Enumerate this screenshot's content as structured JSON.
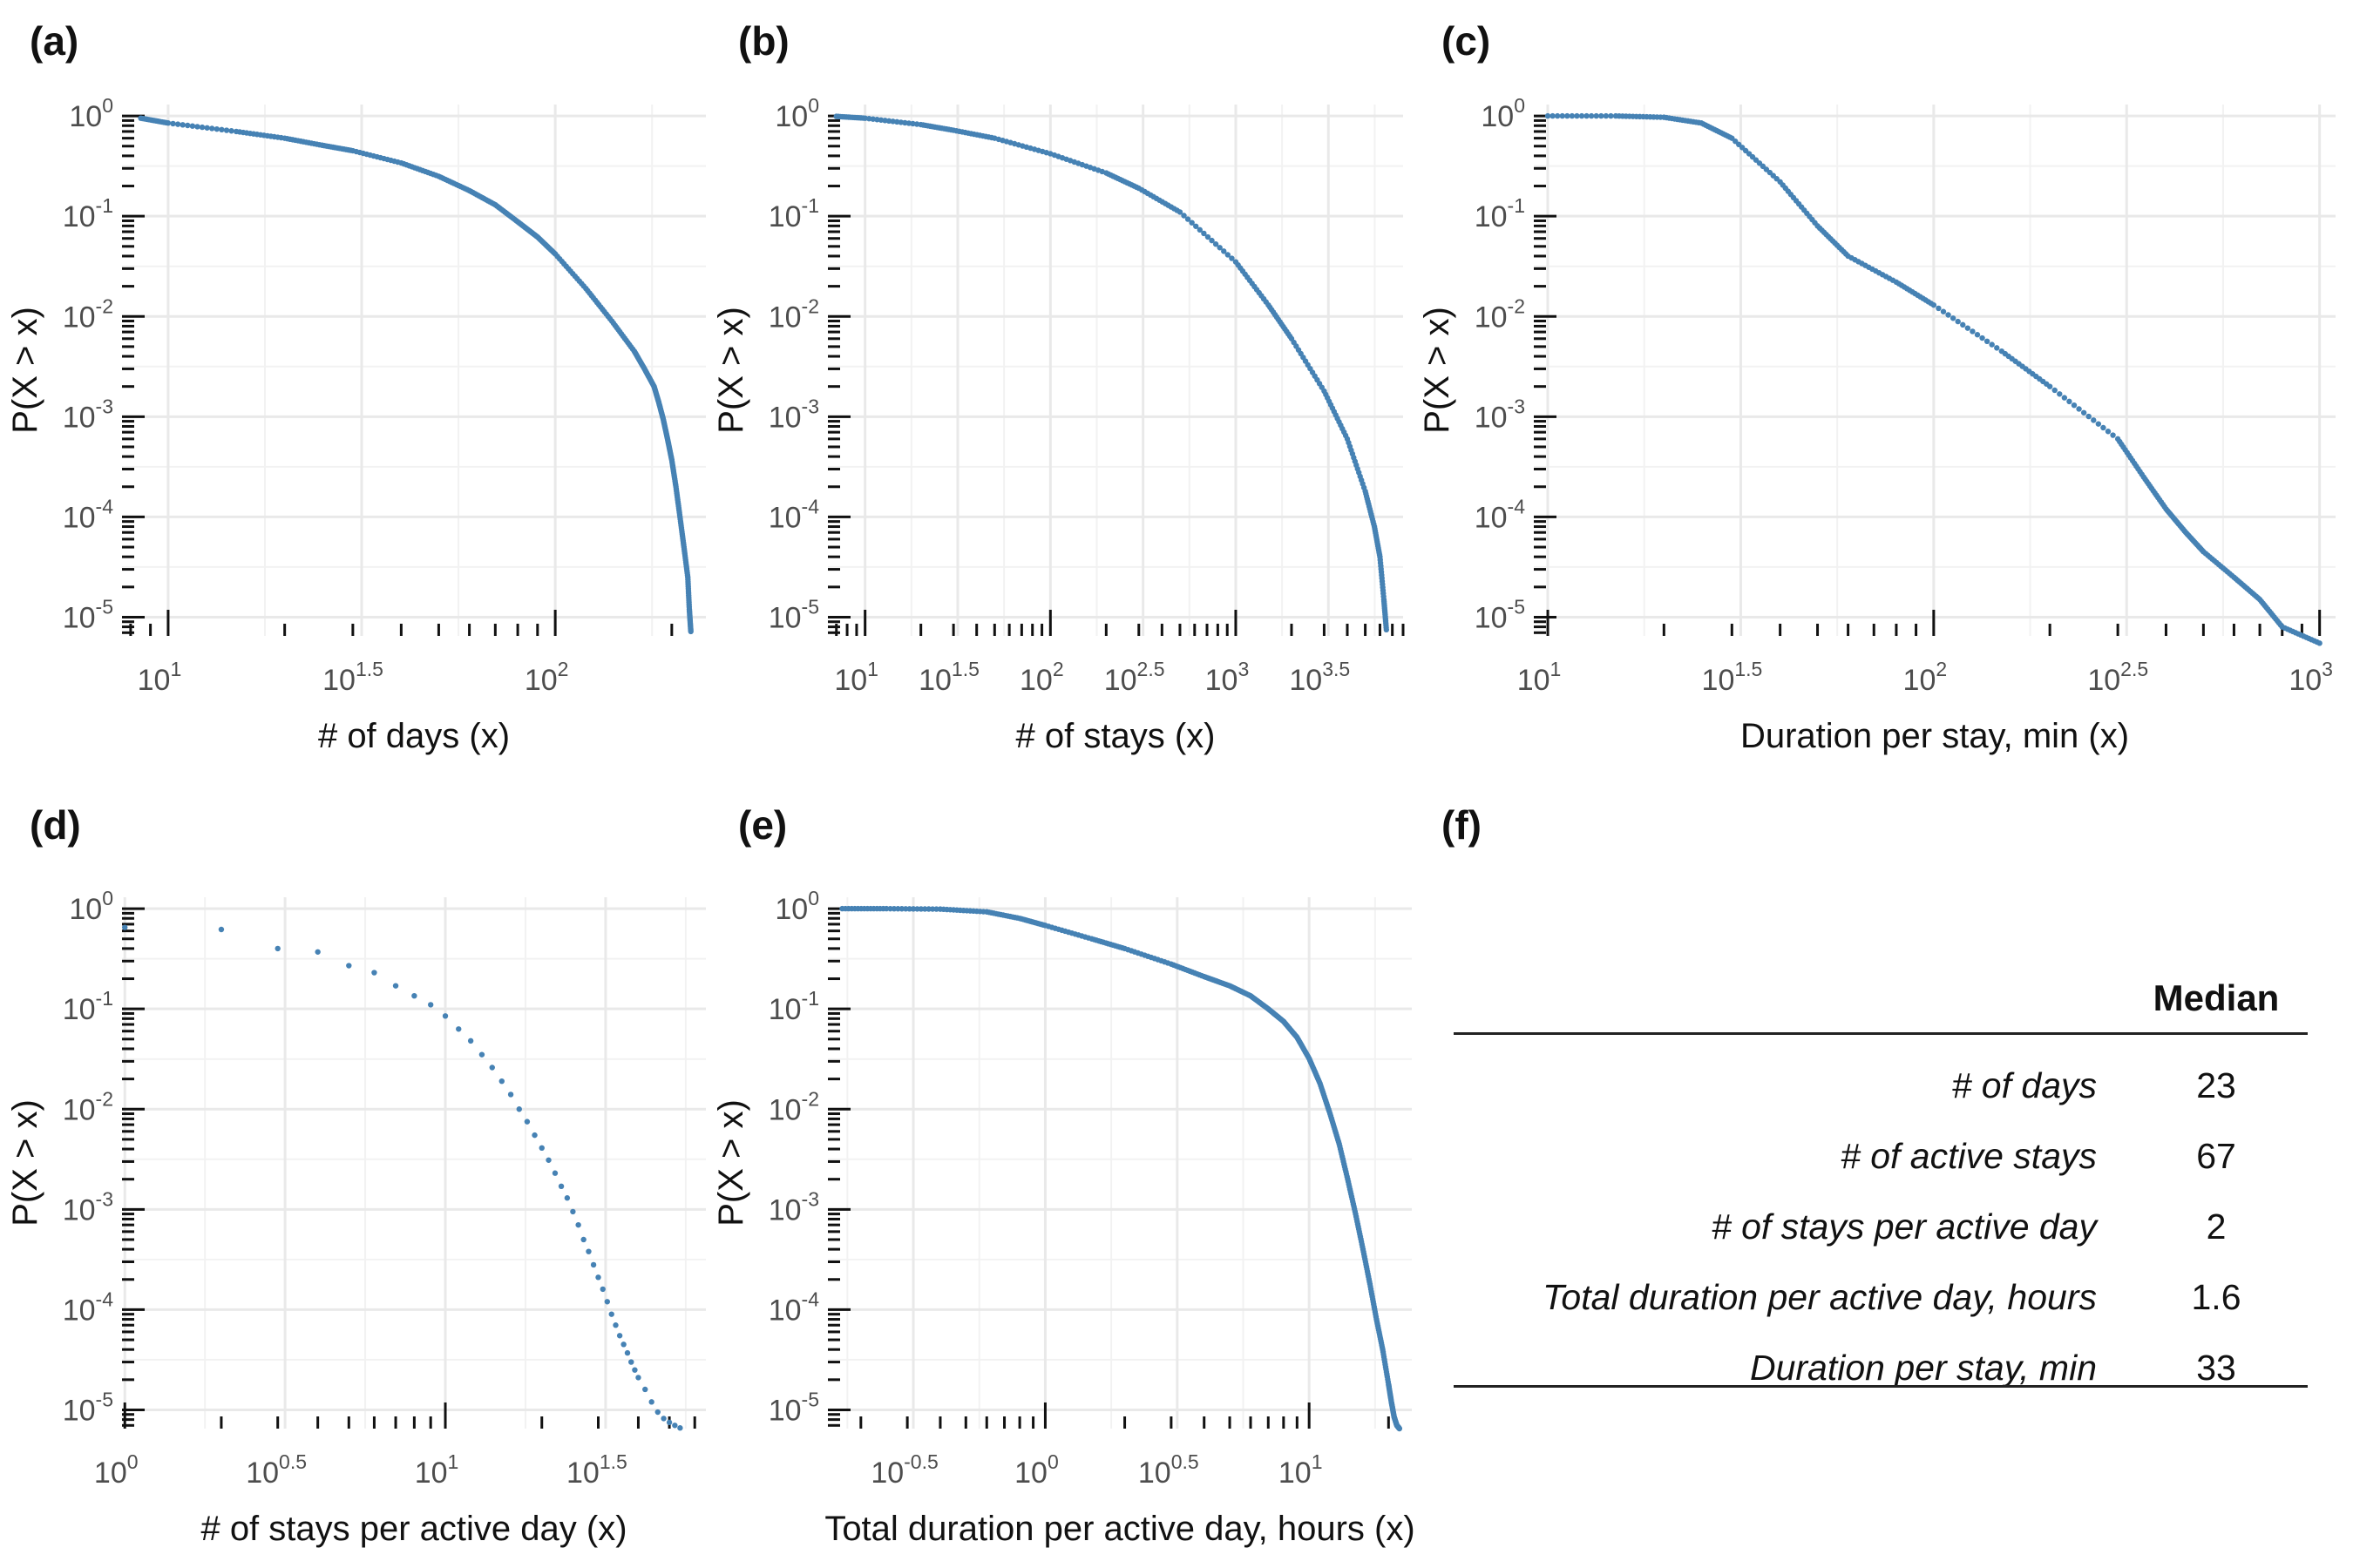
{
  "panels": [
    {
      "label": "(a)",
      "chart_data": {
        "type": "scatter",
        "title": "",
        "xlabel": "# of days (x)",
        "ylabel": "P(X > x)",
        "x_scale": "log10",
        "y_scale": "log10",
        "x_ticks": [
          "10^1",
          "10^1.5",
          "10^2"
        ],
        "y_ticks": [
          "10^0",
          "10^-1",
          "10^-2",
          "10^-3",
          "10^-4",
          "10^-5"
        ],
        "xlim": [
          7.6,
          245
        ],
        "ylim": [
          6.5e-06,
          1.3
        ],
        "grid": true,
        "series": [
          {
            "x": [
              8.5,
              10,
              15,
              20,
              25,
              30,
              40,
              50,
              60,
              70,
              80,
              90,
              100,
              120,
              140,
              160,
              170,
              180,
              185,
              190,
              195,
              200,
              205,
              210,
              215,
              220,
              222,
              224
            ],
            "y": [
              0.95,
              0.85,
              0.7,
              0.6,
              0.51,
              0.45,
              0.34,
              0.25,
              0.18,
              0.13,
              0.088,
              0.062,
              0.042,
              0.019,
              0.009,
              0.0045,
              0.003,
              0.002,
              0.0014,
              0.00095,
              0.0006,
              0.00037,
              0.0002,
              0.0001,
              5e-05,
              2.5e-05,
              1.2e-05,
              7.2e-06
            ]
          }
        ]
      }
    },
    {
      "label": "(b)",
      "chart_data": {
        "type": "scatter",
        "title": "",
        "xlabel": "# of stays (x)",
        "ylabel": "P(X > x)",
        "x_scale": "log10",
        "y_scale": "log10",
        "x_ticks": [
          "10^1",
          "10^1.5",
          "10^2",
          "10^2.5",
          "10^3",
          "10^3.5"
        ],
        "y_ticks": [
          "10^0",
          "10^-1",
          "10^-2",
          "10^-3",
          "10^-4",
          "10^-5"
        ],
        "xlim": [
          6.3,
          8000
        ],
        "ylim": [
          6.5e-06,
          1.3
        ],
        "grid": true,
        "series": [
          {
            "x": [
              7,
              10,
              20,
              30,
              50,
              100,
              200,
              300,
              500,
              1000,
              1500,
              2000,
              3000,
              4000,
              5000,
              5600,
              6000,
              6300,
              6500
            ],
            "y": [
              0.99,
              0.95,
              0.82,
              0.72,
              0.6,
              0.42,
              0.27,
              0.19,
              0.11,
              0.035,
              0.013,
              0.006,
              0.0018,
              0.0006,
              0.00018,
              8e-05,
              4e-05,
              1.5e-05,
              7.5e-06
            ]
          }
        ]
      }
    },
    {
      "label": "(c)",
      "chart_data": {
        "type": "scatter",
        "title": "",
        "xlabel": "Duration per stay, min (x)",
        "ylabel": "P(X > x)",
        "x_scale": "log10",
        "y_scale": "log10",
        "x_ticks": [
          "10^1",
          "10^1.5",
          "10^2",
          "10^2.5",
          "10^3"
        ],
        "y_ticks": [
          "10^0",
          "10^-1",
          "10^-2",
          "10^-3",
          "10^-4",
          "10^-5"
        ],
        "xlim": [
          9.2,
          1100
        ],
        "ylim": [
          6.5e-06,
          1.3
        ],
        "grid": true,
        "series": [
          {
            "x": [
              10,
              15,
              20,
              25,
              30,
              40,
              50,
              60,
              80,
              100,
              150,
              200,
              300,
              350,
              400,
              450,
              500,
              600,
              700,
              800,
              1000
            ],
            "y": [
              1.0,
              1.0,
              0.97,
              0.85,
              0.6,
              0.22,
              0.08,
              0.04,
              0.022,
              0.013,
              0.0045,
              0.002,
              0.0006,
              0.00025,
              0.00012,
              7e-05,
              4.5e-05,
              2.5e-05,
              1.5e-05,
              8e-06,
              5.5e-06
            ]
          }
        ]
      }
    },
    {
      "label": "(d)",
      "chart_data": {
        "type": "scatter",
        "title": "",
        "xlabel": "# of stays per active day (x)",
        "ylabel": "P(X > x)",
        "x_scale": "log10",
        "y_scale": "log10",
        "x_ticks": [
          "10^0",
          "10^0.5",
          "10^1",
          "10^1.5"
        ],
        "y_ticks": [
          "10^0",
          "10^-1",
          "10^-2",
          "10^-3",
          "10^-4",
          "10^-5"
        ],
        "xlim": [
          0.98,
          65
        ],
        "ylim": [
          6.5e-06,
          1.3
        ],
        "grid": true,
        "series": [
          {
            "x": [
              1,
              2,
              3,
              4,
              5,
              6,
              7,
              8,
              9,
              10,
              11,
              12,
              13,
              14,
              15,
              16,
              17,
              18,
              19,
              20,
              21,
              22,
              23,
              24,
              25,
              26,
              27,
              28,
              29,
              30,
              31,
              32,
              33,
              34,
              35,
              36,
              37,
              38,
              39,
              40,
              42,
              44,
              46,
              48,
              50,
              52,
              54
            ],
            "y": [
              0.65,
              0.62,
              0.4,
              0.37,
              0.27,
              0.23,
              0.17,
              0.135,
              0.11,
              0.085,
              0.063,
              0.048,
              0.035,
              0.026,
              0.019,
              0.014,
              0.01,
              0.0075,
              0.0055,
              0.0041,
              0.0031,
              0.0023,
              0.0017,
              0.0013,
              0.00095,
              0.0007,
              0.0005,
              0.00038,
              0.00028,
              0.00021,
              0.00016,
              0.00012,
              9e-05,
              7e-05,
              5.5e-05,
              4.5e-05,
              3.7e-05,
              3e-05,
              2.5e-05,
              2.1e-05,
              1.6e-05,
              1.2e-05,
              9.5e-06,
              8.2e-06,
              7.5e-06,
              7e-06,
              6.6e-06
            ]
          }
        ]
      }
    },
    {
      "label": "(e)",
      "chart_data": {
        "type": "scatter",
        "title": "",
        "xlabel": "Total duration per active day, hours (x)",
        "ylabel": "P(X > x)",
        "x_scale": "log10",
        "y_scale": "log10",
        "x_ticks": [
          "10^-0.5",
          "10^0",
          "10^0.5",
          "10^1"
        ],
        "y_ticks": [
          "10^0",
          "10^-1",
          "10^-2",
          "10^-3",
          "10^-4",
          "10^-5"
        ],
        "xlim": [
          0.15,
          24.5
        ],
        "ylim": [
          6.5e-06,
          1.3
        ],
        "grid": true,
        "series": [
          {
            "x": [
              0.17,
              0.25,
              0.4,
              0.6,
              0.8,
              1.0,
              1.5,
              2,
              3,
              4,
              5,
              6,
              7,
              8,
              9,
              10,
              11,
              12,
              13,
              14,
              15,
              16,
              17,
              18,
              19,
              20,
              20.5,
              21,
              21.5,
              22
            ],
            "y": [
              1.0,
              1.0,
              0.99,
              0.93,
              0.8,
              0.68,
              0.5,
              0.4,
              0.28,
              0.21,
              0.17,
              0.135,
              0.1,
              0.075,
              0.052,
              0.032,
              0.018,
              0.009,
              0.0045,
              0.002,
              0.0009,
              0.0004,
              0.00018,
              8e-05,
              4e-05,
              1.8e-05,
              1.2e-05,
              8.5e-06,
              7e-06,
              6.5e-06
            ]
          }
        ]
      }
    }
  ],
  "summary": {
    "label": "(f)",
    "header": "Median",
    "rows": [
      {
        "label": "# of days",
        "value": "23"
      },
      {
        "label": "# of active stays",
        "value": "67"
      },
      {
        "label": "# of stays per active day",
        "value": "2"
      },
      {
        "label": "Total duration per active day, hours",
        "value": "1.6"
      },
      {
        "label": "Duration per stay, min",
        "value": "33"
      }
    ]
  },
  "colors": {
    "points": "#4682b4",
    "grid": "#e9e9e9",
    "text": "#4d4d4d",
    "rug": "#111111"
  }
}
